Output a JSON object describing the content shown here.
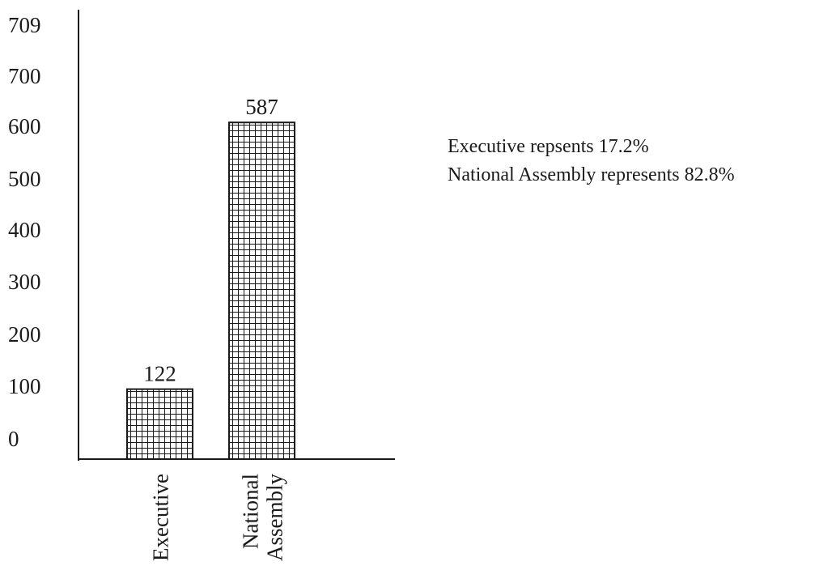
{
  "chart_data": {
    "type": "bar",
    "categories": [
      [
        "Executive"
      ],
      [
        "National",
        "Assembly"
      ]
    ],
    "values": [
      122,
      587
    ],
    "data_labels": [
      "122",
      "587"
    ],
    "yticks": [
      0,
      100,
      200,
      300,
      400,
      500,
      600,
      700,
      709
    ],
    "ytick_labels": [
      "0",
      "100",
      "200",
      "300",
      "400",
      "500",
      "600",
      "700",
      "709"
    ],
    "title": "",
    "xlabel": "",
    "ylabel": "",
    "grid": false,
    "bar_pattern": "crosshatch"
  },
  "annotations": [
    "Executive repsents 17.2%",
    "National Assembly represents 82.8%"
  ],
  "colors": {
    "ink": "#1a1a1a",
    "background": "#ffffff"
  }
}
